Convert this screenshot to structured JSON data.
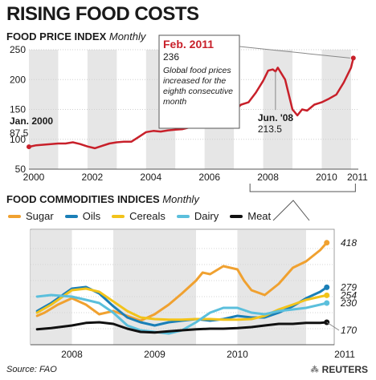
{
  "header": {
    "title": "RISING FOOD COSTS",
    "panel1_title": "FOOD PRICE INDEX",
    "panel1_sub": "Monthly",
    "panel2_title": "FOOD COMMODITIES INDICES",
    "panel2_sub": "Monthly"
  },
  "footer": {
    "source": "Source: FAO",
    "brand": "REUTERS"
  },
  "colors": {
    "fpi_line": "#c8202a",
    "shade": "#e6e6e6",
    "sugar": "#f0a130",
    "oils": "#1b7fb7",
    "cereals": "#f2c31a",
    "dairy": "#5bbfdc",
    "meat": "#111111"
  },
  "chart_data": [
    {
      "type": "line",
      "title": "FOOD PRICE INDEX",
      "ylim": [
        50,
        250
      ],
      "yticks": [
        50,
        100,
        150,
        200,
        250
      ],
      "xlim": [
        2000.0,
        2011.25
      ],
      "xticks": [
        "2000",
        "2002",
        "2004",
        "2006",
        "2008",
        "2010",
        "2011"
      ],
      "shaded_years": [
        [
          2000,
          2001
        ],
        [
          2002,
          2003
        ],
        [
          2004,
          2005
        ],
        [
          2006,
          2007
        ],
        [
          2008,
          2009
        ],
        [
          2010,
          2011
        ]
      ],
      "series": [
        {
          "name": "",
          "x": [
            2000.0,
            2000.25,
            2000.5,
            2000.75,
            2001.0,
            2001.25,
            2001.5,
            2001.75,
            2002.0,
            2002.25,
            2002.5,
            2002.75,
            2003.0,
            2003.25,
            2003.5,
            2003.75,
            2004.0,
            2004.25,
            2004.5,
            2004.75,
            2005.0,
            2005.25,
            2005.5,
            2005.75,
            2006.0,
            2006.25,
            2006.5,
            2006.75,
            2007.0,
            2007.25,
            2007.5,
            2007.75,
            2008.0,
            2008.17,
            2008.33,
            2008.42,
            2008.5,
            2008.75,
            2009.0,
            2009.17,
            2009.33,
            2009.5,
            2009.75,
            2010.0,
            2010.25,
            2010.5,
            2010.75,
            2011.0,
            2011.08
          ],
          "values": [
            87.5,
            90,
            91,
            92,
            93,
            93,
            95,
            92,
            88,
            85,
            89,
            93,
            95,
            96,
            96,
            104,
            112,
            114,
            113,
            115,
            116,
            117,
            120,
            122,
            124,
            127,
            130,
            138,
            148,
            158,
            162,
            178,
            198,
            215,
            217,
            213.5,
            220,
            200,
            150,
            140,
            150,
            148,
            158,
            162,
            168,
            175,
            195,
            220,
            236
          ]
        }
      ],
      "annotations": [
        {
          "label": "Jan. 2000",
          "value": "87.5"
        },
        {
          "label": "Jun. '08",
          "value": "213.5"
        },
        {
          "label": "Feb. 2011",
          "value": "236",
          "note": "Global food prices increased for the eighth consecutive month"
        }
      ]
    },
    {
      "type": "line",
      "title": "FOOD COMMODITIES INDICES",
      "ylim": [
        100,
        450
      ],
      "xlim": [
        2007.5,
        2011.17
      ],
      "xticks": [
        "2008",
        "2009",
        "2010",
        "2011"
      ],
      "shaded_years": [
        [
          2007.5,
          2008
        ],
        [
          2008.5,
          2009.5
        ],
        [
          2010,
          2010.83
        ]
      ],
      "end_labels": [
        "418",
        "279",
        "254",
        "230",
        "170"
      ],
      "series": [
        {
          "name": "Sugar",
          "x": [
            2007.58,
            2007.67,
            2007.83,
            2008.0,
            2008.17,
            2008.33,
            2008.5,
            2008.67,
            2008.83,
            2009.0,
            2009.17,
            2009.33,
            2009.5,
            2009.58,
            2009.67,
            2009.83,
            2010.0,
            2010.08,
            2010.17,
            2010.33,
            2010.5,
            2010.67,
            2010.83,
            2011.0,
            2011.08
          ],
          "values": [
            190,
            200,
            225,
            245,
            225,
            195,
            205,
            190,
            175,
            195,
            225,
            260,
            300,
            325,
            320,
            345,
            335,
            300,
            270,
            255,
            290,
            340,
            360,
            395,
            418
          ]
        },
        {
          "name": "Oils",
          "x": [
            2007.58,
            2007.75,
            2008.0,
            2008.17,
            2008.33,
            2008.5,
            2008.67,
            2008.83,
            2009.0,
            2009.17,
            2009.33,
            2009.5,
            2009.67,
            2009.83,
            2010.0,
            2010.17,
            2010.33,
            2010.5,
            2010.67,
            2010.83,
            2011.0,
            2011.08
          ],
          "values": [
            205,
            230,
            275,
            280,
            260,
            220,
            185,
            170,
            160,
            170,
            175,
            180,
            175,
            180,
            190,
            185,
            185,
            200,
            220,
            245,
            265,
            279
          ]
        },
        {
          "name": "Cereals",
          "x": [
            2007.58,
            2007.75,
            2008.0,
            2008.17,
            2008.33,
            2008.5,
            2008.67,
            2008.83,
            2009.0,
            2009.17,
            2009.33,
            2009.5,
            2009.67,
            2009.83,
            2010.0,
            2010.17,
            2010.33,
            2010.5,
            2010.67,
            2010.83,
            2011.0,
            2011.08
          ],
          "values": [
            200,
            225,
            270,
            275,
            265,
            235,
            205,
            185,
            180,
            178,
            178,
            180,
            180,
            178,
            178,
            180,
            190,
            210,
            225,
            240,
            250,
            254
          ]
        },
        {
          "name": "Dairy",
          "x": [
            2007.58,
            2007.75,
            2008.0,
            2008.17,
            2008.33,
            2008.5,
            2008.67,
            2008.83,
            2009.0,
            2009.17,
            2009.33,
            2009.5,
            2009.67,
            2009.83,
            2010.0,
            2010.17,
            2010.33,
            2010.5,
            2010.67,
            2010.83,
            2011.0,
            2011.08
          ],
          "values": [
            250,
            255,
            250,
            240,
            230,
            200,
            160,
            145,
            140,
            135,
            145,
            170,
            200,
            215,
            215,
            200,
            195,
            205,
            210,
            215,
            225,
            230
          ]
        },
        {
          "name": "Meat",
          "x": [
            2007.58,
            2007.75,
            2008.0,
            2008.17,
            2008.33,
            2008.5,
            2008.67,
            2008.83,
            2009.0,
            2009.17,
            2009.33,
            2009.5,
            2009.67,
            2009.83,
            2010.0,
            2010.17,
            2010.33,
            2010.5,
            2010.67,
            2010.83,
            2011.0,
            2011.08
          ],
          "values": [
            148,
            152,
            160,
            168,
            170,
            165,
            150,
            140,
            138,
            142,
            145,
            148,
            150,
            150,
            152,
            155,
            160,
            165,
            165,
            168,
            168,
            170
          ]
        }
      ]
    }
  ]
}
